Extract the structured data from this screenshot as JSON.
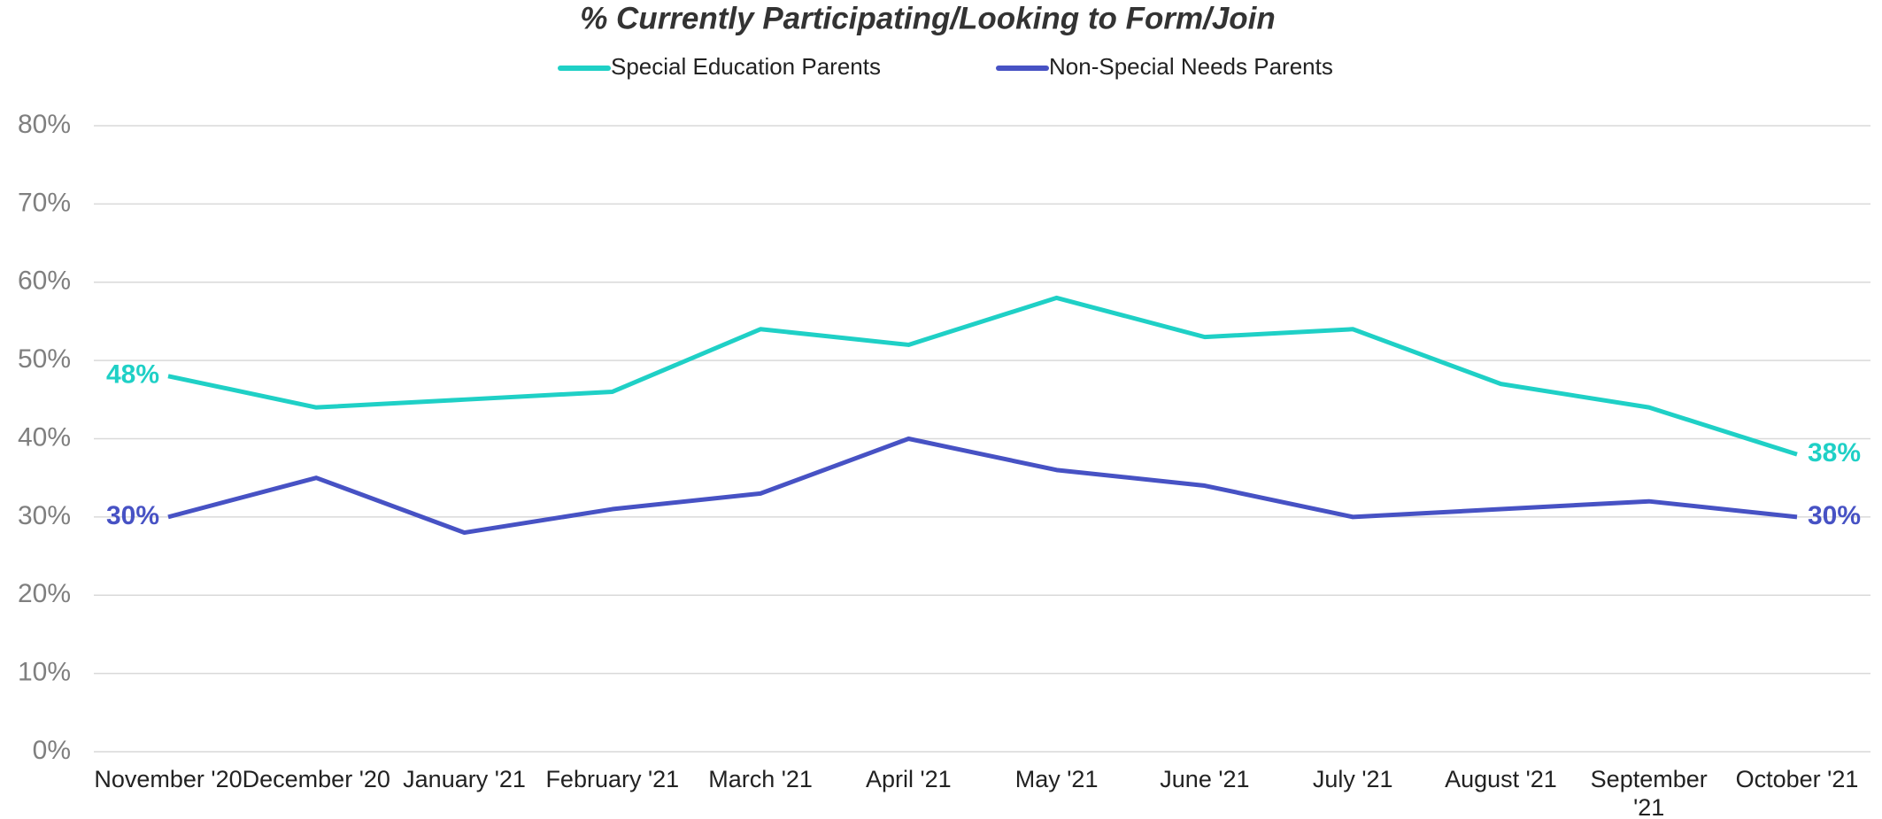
{
  "chart_data": {
    "type": "line",
    "title": "% Currently Participating/Looking to Form/Join",
    "categories": [
      "November '20",
      "December '20",
      "January '21",
      "February '21",
      "March '21",
      "April '21",
      "May '21",
      "June '21",
      "July '21",
      "August '21",
      "September '21",
      "October '21"
    ],
    "series": [
      {
        "name": "Special Education Parents",
        "color": "#1fd0c6",
        "values": [
          48,
          44,
          45,
          46,
          54,
          52,
          58,
          53,
          54,
          47,
          44,
          38
        ],
        "value_labels": [
          "48%",
          null,
          null,
          null,
          null,
          null,
          null,
          null,
          null,
          null,
          null,
          "38%"
        ]
      },
      {
        "name": "Non-Special Needs Parents",
        "color": "#4752c4",
        "values": [
          30,
          35,
          28,
          31,
          33,
          40,
          36,
          34,
          30,
          31,
          32,
          30
        ],
        "value_labels": [
          "30%",
          null,
          null,
          null,
          null,
          null,
          null,
          null,
          null,
          null,
          null,
          "30%"
        ]
      }
    ],
    "ylim": [
      0,
      80
    ],
    "yticks": [
      {
        "value": 0,
        "label": "0%"
      },
      {
        "value": 10,
        "label": "10%"
      },
      {
        "value": 20,
        "label": "20%"
      },
      {
        "value": 30,
        "label": "30%"
      },
      {
        "value": 40,
        "label": "40%"
      },
      {
        "value": 50,
        "label": "50%"
      },
      {
        "value": 60,
        "label": "60%"
      },
      {
        "value": 70,
        "label": "70%"
      },
      {
        "value": 80,
        "label": "80%"
      }
    ],
    "grid": true,
    "legend": "top"
  }
}
